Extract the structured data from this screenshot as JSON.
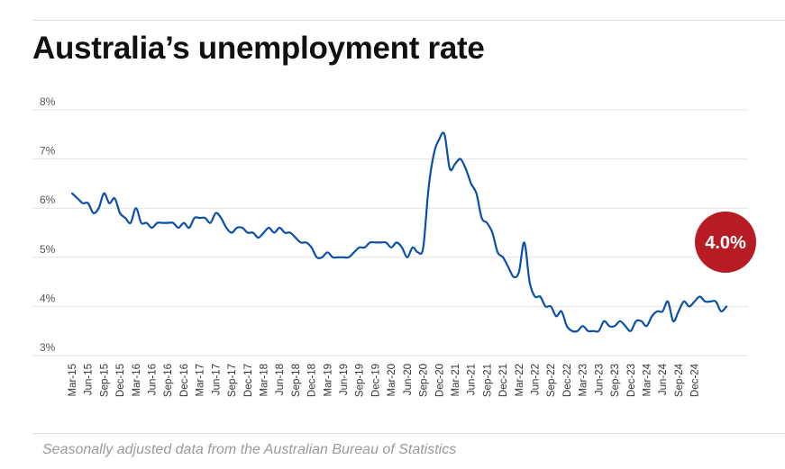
{
  "title": "Australia’s unemployment rate",
  "source": "Seasonally adjusted data from the Australian Bureau of Statistics",
  "colors": {
    "line": "#0b4fa8",
    "badge": "#b71c24",
    "grid": "#e3e3e3"
  },
  "chart_data": {
    "type": "line",
    "title": "Australia’s unemployment rate",
    "xlabel": "",
    "ylabel": "",
    "ylim": [
      3,
      8
    ],
    "yticks": [
      "8%",
      "7%",
      "6%",
      "5%",
      "4%",
      "3%"
    ],
    "ytick_values": [
      8,
      7,
      6,
      5,
      4,
      3
    ],
    "grid": "horizontal",
    "xtick_labels": [
      "Mar-15",
      "Jun-15",
      "Sep-15",
      "Dec-15",
      "Mar-16",
      "Jun-16",
      "Sep-16",
      "Dec-16",
      "Mar-17",
      "Jun-17",
      "Sep-17",
      "Dec-17",
      "Mar-18",
      "Jun-18",
      "Sep-18",
      "Dec-18",
      "Mar-19",
      "Jun-19",
      "Sep-19",
      "Dec-19",
      "Mar-20",
      "Jun-20",
      "Sep-20",
      "Dec-20",
      "Mar-21",
      "Jun-21",
      "Sep-21",
      "Dec-21",
      "Mar-22",
      "Jun-22",
      "Sep-22",
      "Dec-22",
      "Mar-23",
      "Jun-23",
      "Sep-23",
      "Dec-23",
      "Mar-24",
      "Jun-24",
      "Sep-24",
      "Dec-24"
    ],
    "start": "Mar-15",
    "frequency": "monthly",
    "series": [
      {
        "values": [
          6.3,
          6.2,
          6.1,
          6.1,
          5.9,
          6.0,
          6.3,
          6.1,
          6.2,
          5.9,
          5.8,
          5.7,
          6.0,
          5.7,
          5.7,
          5.6,
          5.7,
          5.7,
          5.7,
          5.7,
          5.6,
          5.7,
          5.6,
          5.8,
          5.8,
          5.8,
          5.7,
          5.9,
          5.8,
          5.6,
          5.5,
          5.6,
          5.6,
          5.5,
          5.5,
          5.4,
          5.5,
          5.6,
          5.5,
          5.6,
          5.5,
          5.5,
          5.4,
          5.3,
          5.3,
          5.2,
          5.0,
          5.0,
          5.1,
          5.0,
          5.0,
          5.0,
          5.0,
          5.1,
          5.2,
          5.2,
          5.3,
          5.3,
          5.3,
          5.3,
          5.2,
          5.3,
          5.2,
          5.0,
          5.2,
          5.1,
          5.2,
          6.4,
          7.1,
          7.4,
          7.5,
          6.8,
          6.9,
          7.0,
          6.8,
          6.5,
          6.3,
          5.8,
          5.7,
          5.5,
          5.1,
          5.0,
          4.8,
          4.6,
          4.7,
          5.3,
          4.5,
          4.2,
          4.2,
          4.0,
          4.0,
          3.8,
          3.9,
          3.6,
          3.5,
          3.5,
          3.6,
          3.5,
          3.5,
          3.5,
          3.7,
          3.6,
          3.6,
          3.7,
          3.6,
          3.5,
          3.7,
          3.7,
          3.6,
          3.8,
          3.9,
          3.9,
          4.1,
          3.7,
          3.9,
          4.1,
          4.0,
          4.1,
          4.2,
          4.1,
          4.1,
          4.1,
          3.9,
          4.0
        ]
      }
    ],
    "latest_label": "4.0%"
  }
}
